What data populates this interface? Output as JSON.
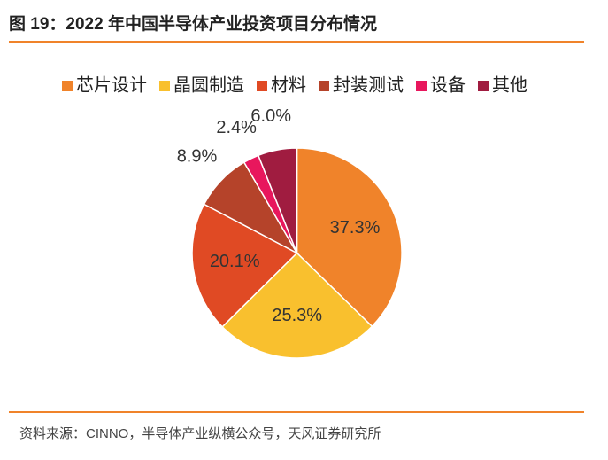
{
  "chart_data": {
    "type": "pie",
    "title": "图 19：2022 年中国半导体产业投资项目分布情况",
    "source": "资料来源：CINNO，半导体产业纵横公众号，天风证券研究所",
    "categories": [
      "芯片设计",
      "晶圆制造",
      "材料",
      "封装测试",
      "设备",
      "其他"
    ],
    "values": [
      37.3,
      25.3,
      20.1,
      8.9,
      2.4,
      6.0
    ],
    "value_labels": [
      "37.3%",
      "25.3%",
      "20.1%",
      "8.9%",
      "2.4%",
      "6.0%"
    ],
    "colors": [
      "#f0832a",
      "#f9c02e",
      "#e04a24",
      "#b5432a",
      "#e8175d",
      "#a01c40"
    ]
  }
}
